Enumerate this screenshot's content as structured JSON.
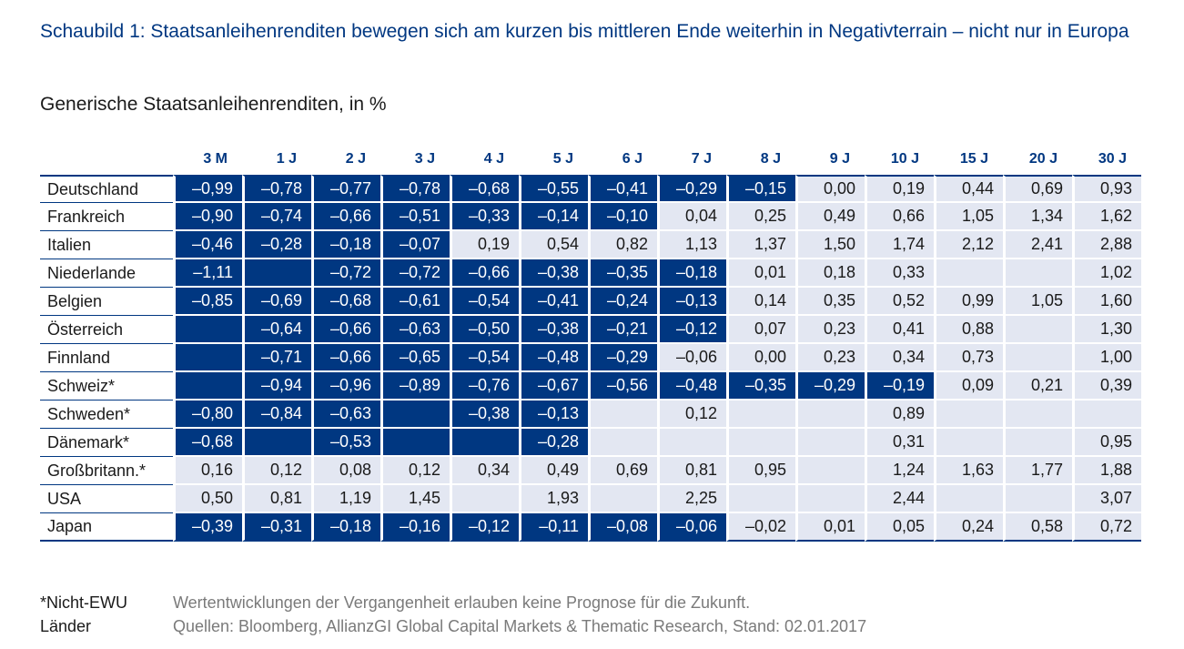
{
  "title": "Schaubild 1: Staatsanleihenrenditen bewegen sich am kurzen bis mittleren Ende weiterhin in Negativterrain – nicht nur in Europa",
  "subtitle": "Generische Staatsanleihenrenditen, in %",
  "colors": {
    "accent": "#003781",
    "cell_bg": "#e3e7f2",
    "negative_bg": "#003781",
    "negative_text": "#ffffff"
  },
  "chart_data": {
    "type": "table",
    "title": "Schaubild 1: Staatsanleihenrenditen bewegen sich am kurzen bis mittleren Ende weiterhin in Negativterrain – nicht nur in Europa",
    "subtitle": "Generische Staatsanleihenrenditen, in %",
    "columns": [
      "3 M",
      "1 J",
      "2 J",
      "3 J",
      "4 J",
      "5 J",
      "6 J",
      "7 J",
      "8 J",
      "9 J",
      "10 J",
      "15 J",
      "20 J",
      "30 J"
    ],
    "rows": [
      {
        "label": "Deutschland",
        "values": [
          "–0,99",
          "–0,78",
          "–0,77",
          "–0,78",
          "–0,68",
          "–0,55",
          "–0,41",
          "–0,29",
          "–0,15",
          "0,00",
          "0,19",
          "0,44",
          "0,69",
          "0,93"
        ],
        "negative": [
          true,
          true,
          true,
          true,
          true,
          true,
          true,
          true,
          true,
          false,
          false,
          false,
          false,
          false
        ]
      },
      {
        "label": "Frankreich",
        "values": [
          "–0,90",
          "–0,74",
          "–0,66",
          "–0,51",
          "–0,33",
          "–0,14",
          "–0,10",
          "0,04",
          "0,25",
          "0,49",
          "0,66",
          "1,05",
          "1,34",
          "1,62"
        ],
        "negative": [
          true,
          true,
          true,
          true,
          true,
          true,
          true,
          false,
          false,
          false,
          false,
          false,
          false,
          false
        ]
      },
      {
        "label": "Italien",
        "values": [
          "–0,46",
          "–0,28",
          "–0,18",
          "–0,07",
          "0,19",
          "0,54",
          "0,82",
          "1,13",
          "1,37",
          "1,50",
          "1,74",
          "2,12",
          "2,41",
          "2,88"
        ],
        "negative": [
          true,
          true,
          true,
          true,
          false,
          false,
          false,
          false,
          false,
          false,
          false,
          false,
          false,
          false
        ]
      },
      {
        "label": "Niederlande",
        "values": [
          "–1,11",
          "",
          "–0,72",
          "–0,72",
          "–0,66",
          "–0,38",
          "–0,35",
          "–0,18",
          "0,01",
          "0,18",
          "0,33",
          "",
          "",
          "1,02"
        ],
        "negative": [
          true,
          true,
          true,
          true,
          true,
          true,
          true,
          true,
          false,
          false,
          false,
          false,
          false,
          false
        ]
      },
      {
        "label": "Belgien",
        "values": [
          "–0,85",
          "–0,69",
          "–0,68",
          "–0,61",
          "–0,54",
          "–0,41",
          "–0,24",
          "–0,13",
          "0,14",
          "0,35",
          "0,52",
          "0,99",
          "1,05",
          "1,60"
        ],
        "negative": [
          true,
          true,
          true,
          true,
          true,
          true,
          true,
          true,
          false,
          false,
          false,
          false,
          false,
          false
        ]
      },
      {
        "label": "Österreich",
        "values": [
          "",
          "–0,64",
          "–0,66",
          "–0,63",
          "–0,50",
          "–0,38",
          "–0,21",
          "–0,12",
          "0,07",
          "0,23",
          "0,41",
          "0,88",
          "",
          "1,30"
        ],
        "negative": [
          true,
          true,
          true,
          true,
          true,
          true,
          true,
          true,
          false,
          false,
          false,
          false,
          false,
          false
        ]
      },
      {
        "label": "Finnland",
        "values": [
          "",
          "–0,71",
          "–0,66",
          "–0,65",
          "–0,54",
          "–0,48",
          "–0,29",
          "–0,06",
          "0,00",
          "0,23",
          "0,34",
          "0,73",
          "",
          "1,00"
        ],
        "negative": [
          true,
          true,
          true,
          true,
          true,
          true,
          true,
          false,
          false,
          false,
          false,
          false,
          false,
          false
        ]
      },
      {
        "label": "Schweiz*",
        "values": [
          "",
          "–0,94",
          "–0,96",
          "–0,89",
          "–0,76",
          "–0,67",
          "–0,56",
          "–0,48",
          "–0,35",
          "–0,29",
          "–0,19",
          "0,09",
          "0,21",
          "0,39"
        ],
        "negative": [
          true,
          true,
          true,
          true,
          true,
          true,
          true,
          true,
          true,
          true,
          true,
          false,
          false,
          false
        ]
      },
      {
        "label": "Schweden*",
        "values": [
          "–0,80",
          "–0,84",
          "–0,63",
          "",
          "–0,38",
          "–0,13",
          "",
          "0,12",
          "",
          "",
          "0,89",
          "",
          "",
          ""
        ],
        "negative": [
          true,
          true,
          true,
          true,
          true,
          true,
          false,
          false,
          false,
          false,
          false,
          false,
          false,
          false
        ]
      },
      {
        "label": "Dänemark*",
        "values": [
          "–0,68",
          "",
          "–0,53",
          "",
          "",
          "–0,28",
          "",
          "",
          "",
          "",
          "0,31",
          "",
          "",
          "0,95"
        ],
        "negative": [
          true,
          true,
          true,
          true,
          true,
          true,
          false,
          false,
          false,
          false,
          false,
          false,
          false,
          false
        ]
      },
      {
        "label": "Großbritann.*",
        "values": [
          "0,16",
          "0,12",
          "0,08",
          "0,12",
          "0,34",
          "0,49",
          "0,69",
          "0,81",
          "0,95",
          "",
          "1,24",
          "1,63",
          "1,77",
          "1,88"
        ],
        "negative": [
          false,
          false,
          false,
          false,
          false,
          false,
          false,
          false,
          false,
          false,
          false,
          false,
          false,
          false
        ]
      },
      {
        "label": "USA",
        "values": [
          "0,50",
          "0,81",
          "1,19",
          "1,45",
          "",
          "1,93",
          "",
          "2,25",
          "",
          "",
          "2,44",
          "",
          "",
          "3,07"
        ],
        "negative": [
          false,
          false,
          false,
          false,
          false,
          false,
          false,
          false,
          false,
          false,
          false,
          false,
          false,
          false
        ]
      },
      {
        "label": "Japan",
        "values": [
          "–0,39",
          "–0,31",
          "–0,18",
          "–0,16",
          "–0,12",
          "–0,11",
          "–0,08",
          "–0,06",
          "–0,02",
          "0,01",
          "0,05",
          "0,24",
          "0,58",
          "0,72"
        ],
        "negative": [
          true,
          true,
          true,
          true,
          true,
          true,
          true,
          true,
          false,
          false,
          false,
          false,
          false,
          false
        ]
      }
    ]
  },
  "footer": {
    "note": "*Nicht-EWU Länder",
    "disclaimer": "Wertentwicklungen der Vergangenheit erlauben keine Prognose für die Zukunft.",
    "source": "Quellen: Bloomberg, AllianzGI Global Capital Markets & Thematic Research, Stand: 02.01.2017"
  }
}
